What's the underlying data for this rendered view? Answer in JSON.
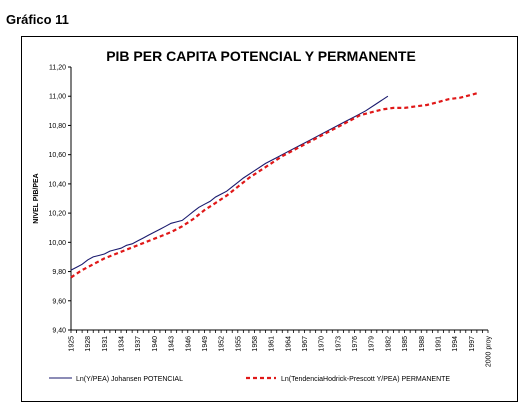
{
  "caption": "Gráfico 11",
  "chart_data": {
    "type": "line",
    "title": "PIB PER CAPITA POTENCIAL Y PERMANENTE",
    "xlabel": "",
    "ylabel": "NIVEL PIB/PEA",
    "ylim": [
      9.4,
      11.2
    ],
    "yticks": [
      "9,40",
      "9,60",
      "9,80",
      "10,00",
      "10,20",
      "10,40",
      "10,60",
      "10,80",
      "11,00",
      "11,20"
    ],
    "ytick_values": [
      9.4,
      9.6,
      9.8,
      10.0,
      10.2,
      10.4,
      10.6,
      10.8,
      11.0,
      11.2
    ],
    "xlim": [
      1925,
      2000
    ],
    "xticks": [
      "1925",
      "1928",
      "1931",
      "1934",
      "1937",
      "1940",
      "1943",
      "1946",
      "1949",
      "1952",
      "1955",
      "1958",
      "1961",
      "1964",
      "1967",
      "1970",
      "1973",
      "1976",
      "1979",
      "1982",
      "1985",
      "1988",
      "1991",
      "1994",
      "1997",
      "2000 proy"
    ],
    "grid": false,
    "legend_position": "bottom",
    "series": [
      {
        "name": "Ln(Y/PEA) Johansen POTENCIAL",
        "color": "#1a1a6e",
        "style": "solid",
        "x": [
          1925,
          1926,
          1927,
          1928,
          1929,
          1930,
          1931,
          1932,
          1933,
          1934,
          1935,
          1936,
          1937,
          1938,
          1939,
          1940,
          1941,
          1942,
          1943,
          1944,
          1945,
          1946,
          1947,
          1948,
          1949,
          1950,
          1951,
          1952,
          1953,
          1954,
          1955,
          1956,
          1958,
          1960,
          1962,
          1964,
          1966,
          1968,
          1970,
          1972,
          1974,
          1976,
          1978,
          1980,
          1982
        ],
        "y": [
          9.81,
          9.83,
          9.85,
          9.88,
          9.9,
          9.91,
          9.92,
          9.94,
          9.95,
          9.96,
          9.98,
          9.99,
          10.01,
          10.03,
          10.05,
          10.07,
          10.09,
          10.11,
          10.13,
          10.14,
          10.15,
          10.18,
          10.21,
          10.24,
          10.26,
          10.28,
          10.31,
          10.33,
          10.35,
          10.38,
          10.41,
          10.44,
          10.49,
          10.54,
          10.58,
          10.62,
          10.66,
          10.7,
          10.74,
          10.78,
          10.82,
          10.86,
          10.9,
          10.95,
          11.0
        ]
      },
      {
        "name": "Ln(TendenciaHodrick-Prescott Y/PEA) PERMANENTE",
        "color": "#e01818",
        "style": "dashed",
        "x": [
          1925,
          1927,
          1929,
          1931,
          1933,
          1935,
          1937,
          1939,
          1941,
          1943,
          1945,
          1947,
          1949,
          1951,
          1953,
          1955,
          1957,
          1959,
          1961,
          1963,
          1965,
          1967,
          1969,
          1971,
          1973,
          1975,
          1977,
          1979,
          1981,
          1983,
          1985,
          1987,
          1989,
          1991,
          1993,
          1995,
          1997,
          1998
        ],
        "y": [
          9.76,
          9.81,
          9.85,
          9.89,
          9.92,
          9.95,
          9.98,
          10.01,
          10.04,
          10.07,
          10.11,
          10.16,
          10.22,
          10.27,
          10.32,
          10.38,
          10.44,
          10.49,
          10.54,
          10.59,
          10.63,
          10.67,
          10.71,
          10.75,
          10.79,
          10.83,
          10.87,
          10.89,
          10.91,
          10.92,
          10.92,
          10.93,
          10.94,
          10.96,
          10.98,
          10.99,
          11.01,
          11.02
        ]
      }
    ]
  }
}
